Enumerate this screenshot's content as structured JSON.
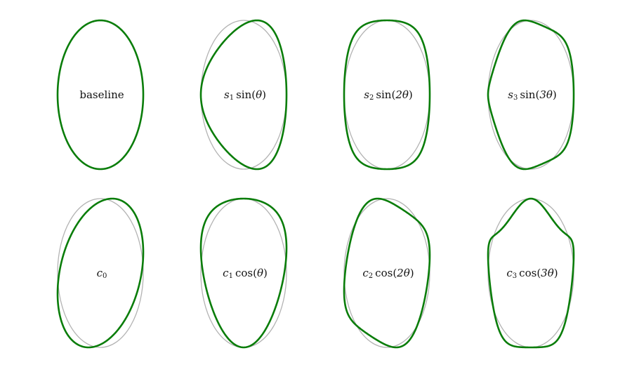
{
  "figure": {
    "colors": {
      "shape": "#0a7d0a",
      "reference": "#b3b3b3",
      "text": "#111111"
    },
    "panels": [
      {
        "label": {
          "type": "plain",
          "text": "baseline"
        },
        "mode": "base",
        "k": 0,
        "amp": 0,
        "show_reference": false
      },
      {
        "label": {
          "type": "math",
          "base": "s",
          "sub": "1",
          "func": "sin",
          "arg": "θ"
        },
        "mode": "sin",
        "k": 1,
        "amp": 0.33,
        "show_reference": true
      },
      {
        "label": {
          "type": "math",
          "base": "s",
          "sub": "2",
          "func": "sin",
          "arg": "2θ"
        },
        "mode": "sin",
        "k": 2,
        "amp": 0.23,
        "show_reference": true
      },
      {
        "label": {
          "type": "math",
          "base": "s",
          "sub": "3",
          "func": "sin",
          "arg": "3θ"
        },
        "mode": "sin",
        "k": 3,
        "amp": 0.16,
        "show_reference": true
      },
      {
        "label": {
          "type": "math",
          "base": "c",
          "sub": "0",
          "func": "",
          "arg": ""
        },
        "mode": "cos",
        "k": 0,
        "amp": 0.28,
        "show_reference": true
      },
      {
        "label": {
          "type": "math",
          "base": "c",
          "sub": "1",
          "func": "cos",
          "arg": "θ"
        },
        "mode": "cos",
        "k": 1,
        "amp": 0.34,
        "show_reference": true
      },
      {
        "label": {
          "type": "math",
          "base": "c",
          "sub": "2",
          "func": "cos",
          "arg": "2θ"
        },
        "mode": "cos",
        "k": 2,
        "amp": 0.24,
        "show_reference": true
      },
      {
        "label": {
          "type": "math",
          "base": "c",
          "sub": "3",
          "func": "cos",
          "arg": "3θ"
        },
        "mode": "cos",
        "k": 3,
        "amp": 0.24,
        "show_reference": true
      }
    ]
  }
}
